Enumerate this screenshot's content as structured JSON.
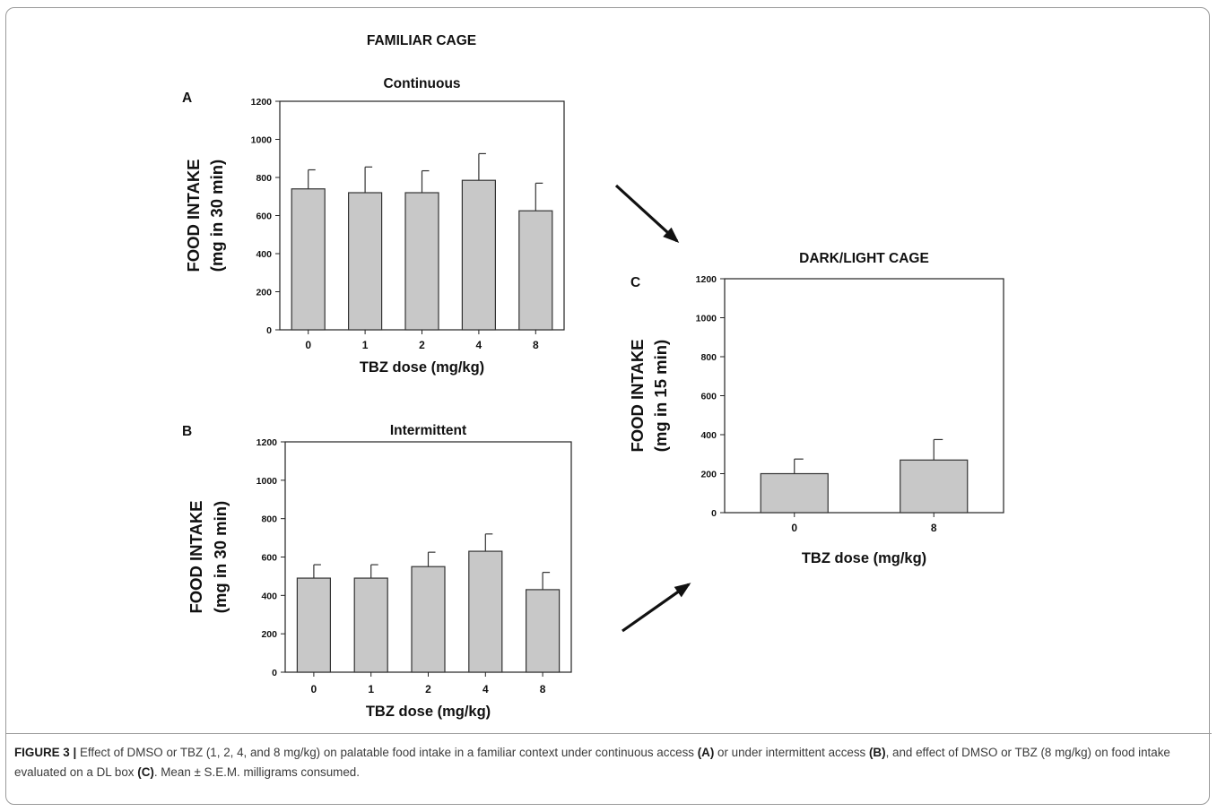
{
  "figure_title": "FAMILIAR CAGE",
  "caption": {
    "label": "FIGURE 3 |",
    "parts": [
      {
        "text": " Effect of DMSO or TBZ (1, 2, 4, and 8 mg/kg) on palatable food intake in a familiar context under continuous access ",
        "bold": false
      },
      {
        "text": "(A)",
        "bold": true
      },
      {
        "text": " or under intermittent access ",
        "bold": false
      },
      {
        "text": "(B)",
        "bold": true
      },
      {
        "text": ", and effect of DMSO or TBZ (8 mg/kg) on food intake evaluated on a DL box ",
        "bold": false
      },
      {
        "text": "(C)",
        "bold": true
      },
      {
        "text": ". Mean ± S.E.M. milligrams consumed.",
        "bold": false
      }
    ]
  },
  "colors": {
    "bar_fill": "#c8c8c8",
    "bar_stroke": "#333333",
    "axis": "#222222",
    "arrow": "#111111"
  },
  "chart_data": [
    {
      "panel": "A",
      "type": "bar",
      "title": "Continuous",
      "ylabel_line1": "FOOD INTAKE",
      "ylabel_line2": "(mg in 30 min)",
      "xlabel": "TBZ dose (mg/kg)",
      "categories": [
        "0",
        "1",
        "2",
        "4",
        "8"
      ],
      "values": [
        740,
        720,
        720,
        785,
        625
      ],
      "errors": [
        100,
        135,
        115,
        140,
        145
      ],
      "ylim": [
        0,
        1200
      ],
      "yticks": [
        "0",
        "200",
        "400",
        "600",
        "800",
        "1000",
        "1200"
      ],
      "grid": false
    },
    {
      "panel": "B",
      "type": "bar",
      "title": "Intermittent",
      "ylabel_line1": "FOOD INTAKE",
      "ylabel_line2": "(mg in 30 min)",
      "xlabel": "TBZ dose (mg/kg)",
      "categories": [
        "0",
        "1",
        "2",
        "4",
        "8"
      ],
      "values": [
        490,
        490,
        550,
        630,
        430
      ],
      "errors": [
        70,
        70,
        75,
        90,
        90
      ],
      "ylim": [
        0,
        1200
      ],
      "yticks": [
        "0",
        "200",
        "400",
        "600",
        "800",
        "1000",
        "1200"
      ],
      "grid": false
    },
    {
      "panel": "C",
      "type": "bar",
      "title": "DARK/LIGHT CAGE",
      "ylabel_line1": "FOOD INTAKE",
      "ylabel_line2": "(mg in 15 min)",
      "xlabel": "TBZ dose (mg/kg)",
      "categories": [
        "0",
        "8"
      ],
      "values": [
        200,
        270
      ],
      "errors": [
        75,
        105
      ],
      "ylim": [
        0,
        1200
      ],
      "yticks": [
        "0",
        "200",
        "400",
        "600",
        "800",
        "1000",
        "1200"
      ],
      "grid": false
    }
  ]
}
